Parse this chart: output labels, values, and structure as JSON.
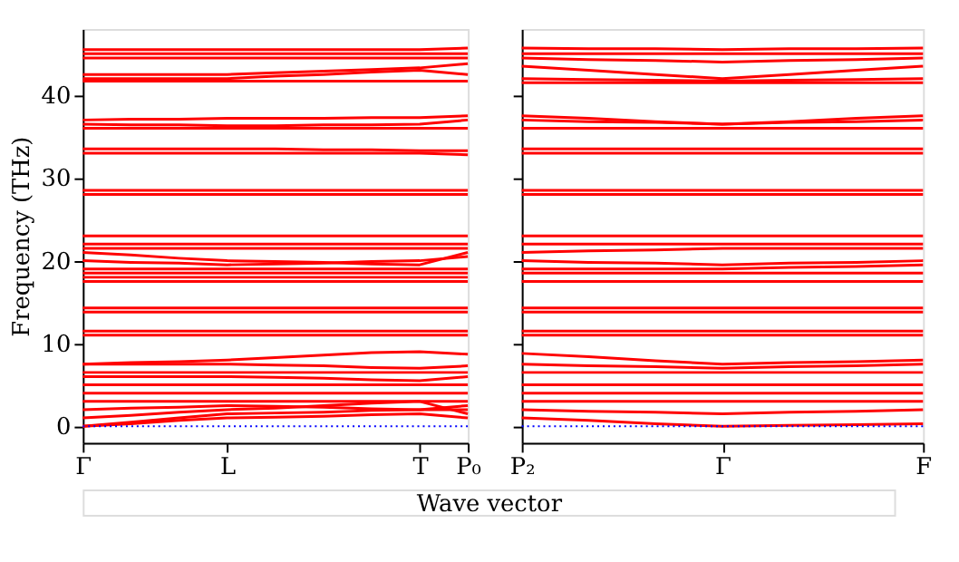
{
  "chart_data": [
    {
      "type": "line",
      "ylabel": "Frequency (THz)",
      "xlabel": "Wave vector",
      "categories": [
        "Γ",
        null,
        null,
        "L",
        null,
        null,
        null,
        "T",
        "P₀"
      ],
      "ylim": [
        -2,
        48
      ],
      "yticks": [
        0,
        10,
        20,
        30,
        40
      ],
      "grid": false,
      "legend": false,
      "ref_lines": [
        {
          "axis": "y",
          "value": 0,
          "color": "#0000ff",
          "line_style": "dotted"
        }
      ],
      "series": [
        {
          "color": "#ff0000",
          "values": [
            0,
            0.3,
            0.7,
            1,
            1.1,
            1.2,
            1.4,
            1.5,
            1
          ]
        },
        {
          "color": "#ff0000",
          "values": [
            0,
            0.5,
            1,
            1.5,
            1.6,
            1.7,
            1.9,
            2,
            2
          ]
        },
        {
          "color": "#ff0000",
          "values": [
            1,
            1.3,
            1.7,
            2,
            2.2,
            2.5,
            2.8,
            3,
            1.5
          ]
        },
        {
          "color": "#ff0000",
          "values": [
            2,
            2.2,
            2.3,
            2.5,
            2.4,
            2.3,
            2.1,
            2,
            2.5
          ]
        },
        {
          "color": "#ff0000",
          "values": [
            3,
            3,
            3,
            3,
            3,
            3,
            3,
            3,
            3
          ]
        },
        {
          "color": "#ff0000",
          "values": [
            4,
            4,
            4,
            4,
            4,
            4,
            4,
            4,
            4
          ]
        },
        {
          "color": "#ff0000",
          "values": [
            5,
            5,
            5,
            5,
            5,
            5,
            5,
            5,
            5
          ]
        },
        {
          "color": "#ff0000",
          "values": [
            6,
            6,
            6,
            6,
            5.9,
            5.8,
            5.6,
            5.5,
            6
          ]
        },
        {
          "color": "#ff0000",
          "values": [
            6.5,
            6.5,
            6.5,
            6.5,
            6.5,
            6.5,
            6.5,
            6.5,
            6.5
          ]
        },
        {
          "color": "#ff0000",
          "values": [
            7.5,
            7.5,
            7.5,
            7.5,
            7.4,
            7.3,
            7.1,
            7,
            7.3
          ]
        },
        {
          "color": "#ff0000",
          "values": [
            7.5,
            7.7,
            7.8,
            8,
            8.3,
            8.6,
            8.9,
            9,
            8.7
          ]
        },
        {
          "color": "#ff0000",
          "values": [
            11,
            11,
            11,
            11,
            11,
            11,
            11,
            11,
            11
          ]
        },
        {
          "color": "#ff0000",
          "values": [
            11.5,
            11.5,
            11.5,
            11.5,
            11.5,
            11.5,
            11.5,
            11.5,
            11.5
          ]
        },
        {
          "color": "#ff0000",
          "values": [
            13.8,
            13.8,
            13.8,
            13.8,
            13.8,
            13.8,
            13.8,
            13.8,
            13.8
          ]
        },
        {
          "color": "#ff0000",
          "values": [
            14.3,
            14.3,
            14.3,
            14.3,
            14.3,
            14.3,
            14.3,
            14.3,
            14.3
          ]
        },
        {
          "color": "#ff0000",
          "values": [
            17.5,
            17.5,
            17.5,
            17.5,
            17.5,
            17.5,
            17.5,
            17.5,
            17.5
          ]
        },
        {
          "color": "#ff0000",
          "values": [
            18,
            18,
            18,
            18,
            18,
            18,
            18,
            18,
            18
          ]
        },
        {
          "color": "#ff0000",
          "values": [
            18.5,
            18.5,
            18.5,
            18.5,
            18.5,
            18.5,
            18.5,
            18.5,
            18.5
          ]
        },
        {
          "color": "#ff0000",
          "values": [
            19,
            19,
            19,
            19,
            19,
            19,
            19,
            19,
            19
          ]
        },
        {
          "color": "#ff0000",
          "values": [
            20,
            19.8,
            19.7,
            19.5,
            19.6,
            19.7,
            19.9,
            20,
            20.5
          ]
        },
        {
          "color": "#ff0000",
          "values": [
            21,
            20.7,
            20.3,
            20,
            19.9,
            19.8,
            19.6,
            19.5,
            21
          ]
        },
        {
          "color": "#ff0000",
          "values": [
            21.5,
            21.5,
            21.5,
            21.5,
            21.5,
            21.5,
            21.5,
            21.5,
            21.5
          ]
        },
        {
          "color": "#ff0000",
          "values": [
            22,
            22,
            22,
            22,
            22,
            22,
            22,
            22,
            22
          ]
        },
        {
          "color": "#ff0000",
          "values": [
            23,
            23,
            23,
            23,
            23,
            23,
            23,
            23,
            23
          ]
        },
        {
          "color": "#ff0000",
          "values": [
            28,
            28,
            28,
            28,
            28,
            28,
            28,
            28,
            28
          ]
        },
        {
          "color": "#ff0000",
          "values": [
            28.5,
            28.5,
            28.5,
            28.5,
            28.5,
            28.5,
            28.5,
            28.5,
            28.5
          ]
        },
        {
          "color": "#ff0000",
          "values": [
            33,
            33,
            33,
            33,
            33,
            33,
            33,
            33,
            32.8
          ]
        },
        {
          "color": "#ff0000",
          "values": [
            33.5,
            33.5,
            33.5,
            33.5,
            33.5,
            33.4,
            33.4,
            33.3,
            33.3
          ]
        },
        {
          "color": "#ff0000",
          "values": [
            36,
            36,
            36,
            36,
            36,
            36,
            36,
            36,
            36
          ]
        },
        {
          "color": "#ff0000",
          "values": [
            36.5,
            36.4,
            36.4,
            36.3,
            36.3,
            36.4,
            36.4,
            36.5,
            37
          ]
        },
        {
          "color": "#ff0000",
          "values": [
            37,
            37.1,
            37.1,
            37.2,
            37.2,
            37.2,
            37.3,
            37.3,
            37.5
          ]
        },
        {
          "color": "#ff0000",
          "values": [
            41.7,
            41.7,
            41.7,
            41.7,
            41.7,
            41.7,
            41.7,
            41.7,
            41.7
          ]
        },
        {
          "color": "#ff0000",
          "values": [
            42,
            42,
            42,
            42,
            42.3,
            42.5,
            42.8,
            43,
            42.5
          ]
        },
        {
          "color": "#ff0000",
          "values": [
            42.5,
            42.5,
            42.5,
            42.5,
            42.7,
            42.9,
            43.1,
            43.3,
            43.8
          ]
        },
        {
          "color": "#ff0000",
          "values": [
            44.5,
            44.5,
            44.5,
            44.5,
            44.5,
            44.5,
            44.5,
            44.5,
            44.5
          ]
        },
        {
          "color": "#ff0000",
          "values": [
            45,
            45,
            45,
            45,
            45,
            45,
            45,
            45,
            45
          ]
        },
        {
          "color": "#ff0000",
          "values": [
            45.5,
            45.5,
            45.5,
            45.5,
            45.5,
            45.5,
            45.5,
            45.5,
            45.7
          ]
        }
      ]
    },
    {
      "type": "line",
      "categories": [
        "P₂",
        null,
        null,
        "Γ",
        null,
        null,
        "F"
      ],
      "ylim": [
        -2,
        48
      ],
      "yticks": [
        0,
        10,
        20,
        30,
        40
      ],
      "tick_labels": "x",
      "grid": false,
      "legend": false,
      "ref_lines": [
        {
          "axis": "y",
          "value": 0,
          "color": "#0000ff",
          "line_style": "dotted"
        }
      ],
      "series": [
        {
          "color": "#ff0000",
          "values": [
            1,
            0.7,
            0.3,
            0,
            0.1,
            0.2,
            0.3
          ]
        },
        {
          "color": "#ff0000",
          "values": [
            2,
            1.8,
            1.7,
            1.5,
            1.7,
            1.8,
            2
          ]
        },
        {
          "color": "#ff0000",
          "values": [
            3,
            3,
            3,
            3,
            3,
            3,
            3
          ]
        },
        {
          "color": "#ff0000",
          "values": [
            4,
            4,
            4,
            4,
            4,
            4,
            4
          ]
        },
        {
          "color": "#ff0000",
          "values": [
            5,
            5,
            5,
            5,
            5,
            5,
            5
          ]
        },
        {
          "color": "#ff0000",
          "values": [
            6.5,
            6.5,
            6.5,
            6.5,
            6.5,
            6.5,
            6.5
          ]
        },
        {
          "color": "#ff0000",
          "values": [
            7.5,
            7.3,
            7.2,
            7,
            7.2,
            7.3,
            7.5
          ]
        },
        {
          "color": "#ff0000",
          "values": [
            8.8,
            8.4,
            7.9,
            7.5,
            7.7,
            7.8,
            8
          ]
        },
        {
          "color": "#ff0000",
          "values": [
            11,
            11,
            11,
            11,
            11,
            11,
            11
          ]
        },
        {
          "color": "#ff0000",
          "values": [
            11.5,
            11.5,
            11.5,
            11.5,
            11.5,
            11.5,
            11.5
          ]
        },
        {
          "color": "#ff0000",
          "values": [
            13.8,
            13.8,
            13.8,
            13.8,
            13.8,
            13.8,
            13.8
          ]
        },
        {
          "color": "#ff0000",
          "values": [
            14.3,
            14.3,
            14.3,
            14.3,
            14.3,
            14.3,
            14.3
          ]
        },
        {
          "color": "#ff0000",
          "values": [
            17.5,
            17.5,
            17.5,
            17.5,
            17.5,
            17.5,
            17.5
          ]
        },
        {
          "color": "#ff0000",
          "values": [
            18.5,
            18.5,
            18.5,
            18.5,
            18.5,
            18.5,
            18.5
          ]
        },
        {
          "color": "#ff0000",
          "values": [
            19,
            19,
            19,
            19,
            19.2,
            19.3,
            19.5
          ]
        },
        {
          "color": "#ff0000",
          "values": [
            20,
            19.8,
            19.7,
            19.5,
            19.7,
            19.8,
            20
          ]
        },
        {
          "color": "#ff0000",
          "values": [
            21,
            21.2,
            21.3,
            21.5,
            21.5,
            21.5,
            21.5
          ]
        },
        {
          "color": "#ff0000",
          "values": [
            22,
            22,
            22,
            22,
            22,
            22,
            22
          ]
        },
        {
          "color": "#ff0000",
          "values": [
            23,
            23,
            23,
            23,
            23,
            23,
            23
          ]
        },
        {
          "color": "#ff0000",
          "values": [
            28,
            28,
            28,
            28,
            28,
            28,
            28
          ]
        },
        {
          "color": "#ff0000",
          "values": [
            28.5,
            28.5,
            28.5,
            28.5,
            28.5,
            28.5,
            28.5
          ]
        },
        {
          "color": "#ff0000",
          "values": [
            33,
            33,
            33,
            33,
            33,
            33,
            33
          ]
        },
        {
          "color": "#ff0000",
          "values": [
            33.5,
            33.5,
            33.5,
            33.5,
            33.5,
            33.5,
            33.5
          ]
        },
        {
          "color": "#ff0000",
          "values": [
            36,
            36,
            36,
            36,
            36,
            36,
            36
          ]
        },
        {
          "color": "#ff0000",
          "values": [
            37,
            36.8,
            36.7,
            36.5,
            36.7,
            36.8,
            37
          ]
        },
        {
          "color": "#ff0000",
          "values": [
            37.5,
            37.2,
            36.8,
            36.5,
            36.8,
            37.2,
            37.5
          ]
        },
        {
          "color": "#ff0000",
          "values": [
            41.5,
            41.5,
            41.5,
            41.5,
            41.5,
            41.5,
            41.5
          ]
        },
        {
          "color": "#ff0000",
          "values": [
            42,
            41.9,
            41.8,
            41.7,
            41.8,
            41.9,
            42
          ]
        },
        {
          "color": "#ff0000",
          "values": [
            43.5,
            43,
            42.5,
            42,
            42.5,
            43,
            43.5
          ]
        },
        {
          "color": "#ff0000",
          "values": [
            44.5,
            44.3,
            44.2,
            44,
            44.2,
            44.3,
            44.5
          ]
        },
        {
          "color": "#ff0000",
          "values": [
            45,
            45,
            45,
            45,
            45,
            45,
            45
          ]
        },
        {
          "color": "#ff0000",
          "values": [
            45.7,
            45.6,
            45.6,
            45.5,
            45.6,
            45.6,
            45.7
          ]
        }
      ]
    }
  ]
}
